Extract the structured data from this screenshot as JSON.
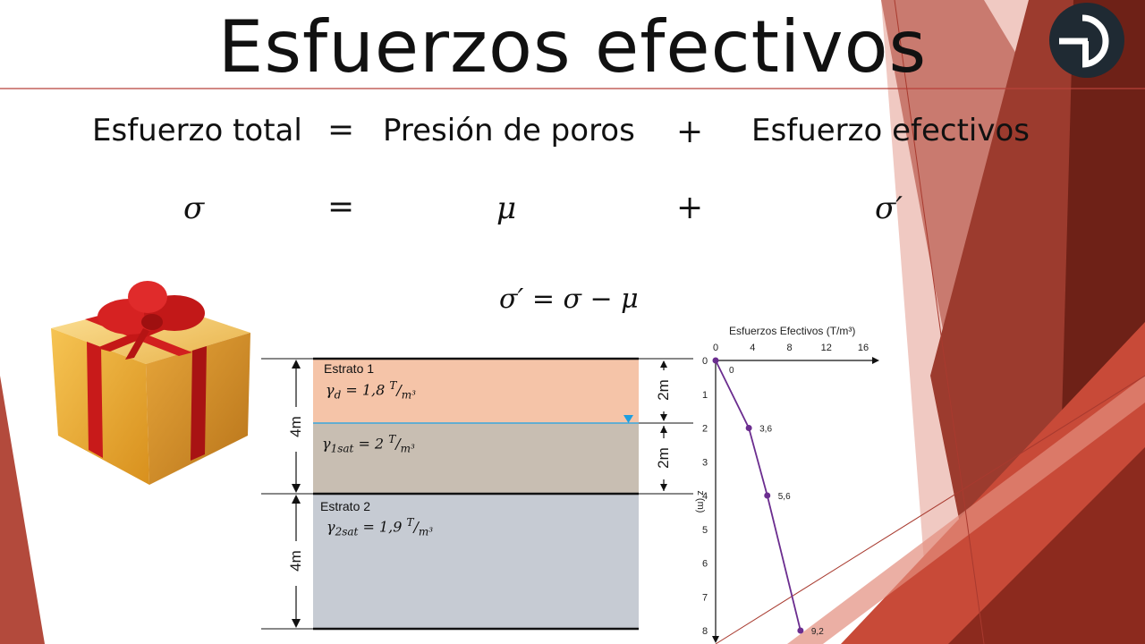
{
  "slide": {
    "title": "Esfuerzos efectivos",
    "equation_words": {
      "total": "Esfuerzo total",
      "equals": "=",
      "pore": "Presión de poros",
      "plus": "+",
      "effective": "Esfuerzo efectivos"
    },
    "equation_symbols": {
      "sigma": "σ",
      "equals": "=",
      "mu": "μ",
      "plus": "+",
      "sigma_prime": "σ′"
    },
    "formula": "σ′ = σ − μ"
  },
  "soil_profile": {
    "stratum1": {
      "name": "Estrato 1",
      "layer_a": {
        "symbol": "γ",
        "sub": "d",
        "value": "= 1,8",
        "unit_num": "T",
        "unit_den": "m³",
        "thickness": "2m"
      },
      "layer_b": {
        "symbol": "γ",
        "sub": "1sat",
        "value": "= 2",
        "unit_num": "T",
        "unit_den": "m³",
        "thickness": "2m"
      },
      "total_thickness": "4m"
    },
    "stratum2": {
      "name": "Estrato 2",
      "layer": {
        "symbol": "γ",
        "sub": "2sat",
        "value": "= 1,9",
        "unit_num": "T",
        "unit_den": "m³"
      },
      "total_thickness": "4m"
    },
    "colors": {
      "layer_a": "#f5c4a8",
      "layer_b": "#c8beb2",
      "layer_c": "#c6cbd3",
      "water_line": "#3aa7dd"
    }
  },
  "chart_data": {
    "type": "line",
    "title": "Esfuerzos  Efectivos (T/m³)",
    "ylabel": "z (m)",
    "xlim": [
      0,
      16
    ],
    "ylim": [
      0,
      8
    ],
    "y_inverted": true,
    "x_ticks": [
      0,
      4,
      8,
      12,
      16
    ],
    "y_ticks": [
      0,
      1,
      2,
      3,
      4,
      5,
      6,
      7,
      8
    ],
    "series": [
      {
        "color": "#6b2d8f",
        "points": [
          {
            "x": 0,
            "y": 0,
            "label": "0"
          },
          {
            "x": 3.6,
            "y": 2,
            "label": "3,6"
          },
          {
            "x": 5.6,
            "y": 4,
            "label": "5,6"
          },
          {
            "x": 9.2,
            "y": 8,
            "label": "9,2"
          }
        ]
      }
    ]
  }
}
